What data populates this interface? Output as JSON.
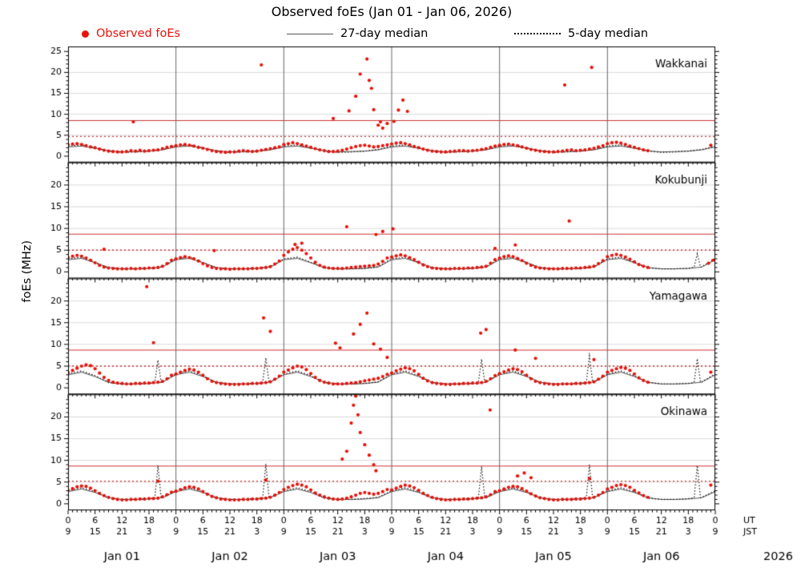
{
  "colors": {
    "observed": "#e8130b",
    "threshold": "#cc3333",
    "median27": "#555555",
    "median5": "#111111",
    "grid": "#d9d9d9",
    "dayline": "#666666"
  },
  "chart_data": {
    "type": "scatter",
    "title": "Observed foEs (Jan 01 - Jan 06, 2026)",
    "ylabel": "foEs (MHz)",
    "y_unit": "MHz",
    "x_unit": "hours from Jan 01 00:00 UT",
    "x_range": [
      0,
      144
    ],
    "legend": {
      "observed": "Observed foEs",
      "median27": "27-day median",
      "median5": "5-day median"
    },
    "axis": {
      "ut_ticks": [
        "0",
        "6",
        "12",
        "18"
      ],
      "jst_ticks": [
        "9",
        "15",
        "21",
        "3"
      ],
      "ut_final": "0",
      "jst_final": "9",
      "ut_label": "UT",
      "jst_label": "JST",
      "year": "2026",
      "day_labels": [
        "Jan 01",
        "Jan 02",
        "Jan 03",
        "Jan 04",
        "Jan 05",
        "Jan 06"
      ]
    },
    "panels": [
      {
        "station": "Wakkanai",
        "y_range": [
          0,
          25
        ],
        "yticks": [
          0,
          5,
          10,
          15,
          20,
          25
        ],
        "thresholds": {
          "solid": 8.5,
          "dotted": 4.7
        },
        "observed_hourly": [
          2.7,
          2.9,
          3.0,
          2.8,
          2.5,
          2.2,
          2.0,
          1.7,
          1.4,
          1.2,
          1.1,
          1.0,
          1.0,
          1.1,
          1.3,
          1.2,
          1.4,
          1.2,
          1.3,
          1.4,
          1.5,
          1.8,
          2.1,
          2.3,
          2.5,
          2.7,
          2.8,
          2.6,
          2.4,
          2.1,
          1.9,
          1.6,
          1.3,
          1.1,
          1.0,
          0.9,
          1.0,
          1.0,
          1.2,
          1.3,
          1.2,
          1.1,
          1.2,
          1.4,
          1.6,
          1.8,
          2.0,
          2.2,
          2.8,
          3.0,
          3.2,
          3.0,
          2.7,
          2.4,
          2.1,
          1.8,
          1.5,
          1.3,
          1.1,
          1.1,
          1.2,
          1.4,
          1.7,
          2.0,
          2.3,
          2.5,
          2.6,
          2.4,
          2.2,
          2.3,
          2.5,
          2.7,
          2.9,
          3.1,
          3.2,
          3.0,
          2.7,
          2.3,
          2.0,
          1.7,
          1.4,
          1.2,
          1.1,
          1.0,
          1.0,
          1.1,
          1.2,
          1.3,
          1.3,
          1.2,
          1.3,
          1.4,
          1.6,
          1.8,
          2.1,
          2.4,
          2.6,
          2.8,
          2.9,
          2.7,
          2.5,
          2.2,
          1.9,
          1.6,
          1.4,
          1.2,
          1.1,
          1.0,
          1.0,
          1.1,
          1.2,
          1.4,
          1.5,
          1.3,
          1.4,
          1.5,
          1.7,
          1.9,
          2.2,
          2.5,
          3.0,
          3.2,
          3.3,
          3.1,
          2.8,
          2.4,
          2.1,
          1.8,
          1.5,
          1.3
        ],
        "observed_extra": [
          [
            14.5,
            8.2
          ],
          [
            43,
            21.8
          ],
          [
            59,
            9.0
          ],
          [
            62.5,
            10.8
          ],
          [
            64,
            14.3
          ],
          [
            65,
            19.6
          ],
          [
            66.5,
            23.2
          ],
          [
            67,
            18.1
          ],
          [
            67.5,
            16.2
          ],
          [
            68,
            11.1
          ],
          [
            69,
            7.4
          ],
          [
            69.5,
            8.2
          ],
          [
            70,
            6.7
          ],
          [
            71,
            7.8
          ],
          [
            72.5,
            8.3
          ],
          [
            73.5,
            11.0
          ],
          [
            74.5,
            13.4
          ],
          [
            75.5,
            10.7
          ],
          [
            110.5,
            17.0
          ],
          [
            116.5,
            21.2
          ],
          [
            143,
            2.6
          ]
        ],
        "median27_day": [
          2.2,
          2.4,
          1.9,
          1.3,
          1.0,
          1.1,
          1.2,
          1.5
        ],
        "median5_day": [
          2.4,
          2.7,
          2.0,
          1.2,
          0.9,
          1.0,
          1.2,
          1.6
        ],
        "median5_spikes": []
      },
      {
        "station": "Kokubunji",
        "y_range": [
          0,
          24
        ],
        "yticks": [
          0,
          5,
          10,
          15,
          20
        ],
        "thresholds": {
          "solid": 8.7,
          "dotted": 5.0
        },
        "observed_hourly": [
          3.3,
          3.6,
          3.8,
          3.6,
          3.2,
          2.7,
          2.1,
          1.5,
          1.1,
          0.9,
          0.8,
          0.7,
          0.7,
          0.7,
          0.8,
          0.7,
          0.8,
          0.8,
          0.9,
          0.9,
          1.0,
          1.3,
          1.9,
          2.7,
          3.0,
          3.3,
          3.5,
          3.3,
          3.0,
          2.5,
          1.9,
          1.4,
          1.0,
          0.8,
          0.7,
          0.7,
          0.6,
          0.7,
          0.7,
          0.7,
          0.7,
          0.8,
          0.8,
          0.9,
          1.0,
          1.2,
          1.8,
          2.5,
          3.8,
          4.6,
          5.2,
          5.6,
          5.0,
          4.2,
          3.2,
          2.2,
          1.5,
          1.1,
          0.9,
          0.8,
          0.8,
          0.8,
          0.9,
          1.0,
          1.1,
          1.2,
          1.3,
          1.4,
          1.5,
          1.8,
          2.4,
          3.2,
          3.4,
          3.7,
          3.9,
          3.7,
          3.3,
          2.8,
          2.2,
          1.6,
          1.2,
          0.9,
          0.8,
          0.7,
          0.7,
          0.7,
          0.8,
          0.8,
          0.8,
          0.9,
          0.9,
          1.0,
          1.1,
          1.3,
          2.0,
          2.8,
          3.2,
          3.5,
          3.7,
          3.5,
          3.1,
          2.6,
          2.0,
          1.5,
          1.1,
          0.9,
          0.8,
          0.7,
          0.7,
          0.7,
          0.8,
          0.8,
          0.8,
          0.9,
          0.9,
          1.0,
          1.1,
          1.3,
          1.9,
          2.6,
          3.5,
          3.8,
          4.0,
          3.8,
          3.4,
          2.9,
          2.3,
          1.7,
          1.3,
          1.0
        ],
        "observed_extra": [
          [
            8,
            5.2
          ],
          [
            32.5,
            4.9
          ],
          [
            50.5,
            6.3
          ],
          [
            52,
            6.6
          ],
          [
            62,
            10.4
          ],
          [
            68.5,
            8.6
          ],
          [
            70,
            9.3
          ],
          [
            72.3,
            9.9
          ],
          [
            95,
            5.4
          ],
          [
            99.5,
            6.2
          ],
          [
            111.5,
            11.7
          ],
          [
            142.5,
            2.0
          ],
          [
            143.5,
            2.7
          ]
        ],
        "median27_day": [
          2.8,
          3.1,
          2.1,
          1.0,
          0.7,
          0.7,
          0.8,
          1.1
        ],
        "median5_day": [
          3.0,
          3.4,
          2.2,
          0.9,
          0.7,
          0.7,
          0.8,
          1.2
        ],
        "median5_spikes": [
          [
            140,
            4.2
          ]
        ]
      },
      {
        "station": "Yamagawa",
        "y_range": [
          0,
          24
        ],
        "yticks": [
          0,
          5,
          10,
          15,
          20
        ],
        "thresholds": {
          "solid": 8.7,
          "dotted": 5.0
        },
        "observed_hourly": [
          3.5,
          4.0,
          4.5,
          5.0,
          5.3,
          5.1,
          4.4,
          3.4,
          2.4,
          1.7,
          1.3,
          1.1,
          1.0,
          0.9,
          0.9,
          1.0,
          1.0,
          1.1,
          1.1,
          1.2,
          1.3,
          1.5,
          2.1,
          2.9,
          3.2,
          3.6,
          4.0,
          4.3,
          4.1,
          3.6,
          2.9,
          2.1,
          1.5,
          1.2,
          1.0,
          0.9,
          0.8,
          0.8,
          0.8,
          0.9,
          0.9,
          1.0,
          1.0,
          1.1,
          1.2,
          1.4,
          2.0,
          2.7,
          3.6,
          4.1,
          4.6,
          5.0,
          4.8,
          4.2,
          3.3,
          2.4,
          1.7,
          1.3,
          1.1,
          0.9,
          0.9,
          0.9,
          1.0,
          1.1,
          1.2,
          1.4,
          1.6,
          1.8,
          2.0,
          2.2,
          2.6,
          3.1,
          3.4,
          3.9,
          4.3,
          4.6,
          4.4,
          3.9,
          3.1,
          2.2,
          1.6,
          1.2,
          1.0,
          0.9,
          0.8,
          0.8,
          0.9,
          0.9,
          1.0,
          1.0,
          1.1,
          1.1,
          1.2,
          1.5,
          2.1,
          2.8,
          3.3,
          3.7,
          4.1,
          4.4,
          4.2,
          3.7,
          2.9,
          2.1,
          1.5,
          1.2,
          1.0,
          0.9,
          0.8,
          0.8,
          0.9,
          0.9,
          0.9,
          1.0,
          1.0,
          1.1,
          1.2,
          1.4,
          2.0,
          2.7,
          3.6,
          4.0,
          4.4,
          4.7,
          4.5,
          4.0,
          3.2,
          2.3,
          1.7,
          1.3
        ],
        "observed_extra": [
          [
            17.5,
            23.3
          ],
          [
            19,
            10.4
          ],
          [
            43.5,
            16.1
          ],
          [
            45,
            13.0
          ],
          [
            59.5,
            10.3
          ],
          [
            60.5,
            9.2
          ],
          [
            63.5,
            12.4
          ],
          [
            65,
            14.6
          ],
          [
            66.5,
            17.2
          ],
          [
            68,
            10.1
          ],
          [
            69.5,
            8.9
          ],
          [
            71,
            7.0
          ],
          [
            91.8,
            12.6
          ],
          [
            93,
            13.4
          ],
          [
            99.5,
            8.7
          ],
          [
            104,
            6.8
          ],
          [
            117,
            6.5
          ],
          [
            143,
            3.6
          ]
        ],
        "median27_day": [
          3.0,
          3.6,
          2.6,
          1.3,
          0.9,
          0.9,
          1.0,
          1.3
        ],
        "median5_day": [
          3.2,
          3.9,
          2.8,
          1.2,
          0.9,
          0.9,
          1.0,
          1.4
        ],
        "median5_spikes": [
          [
            20,
            6.4
          ],
          [
            44,
            6.9
          ],
          [
            92,
            6.6
          ],
          [
            116,
            7.4
          ],
          [
            140,
            6.7
          ]
        ]
      },
      {
        "station": "Okinawa",
        "y_range": [
          0,
          24
        ],
        "yticks": [
          0,
          5,
          10,
          15,
          20
        ],
        "thresholds": {
          "solid": 8.7,
          "dotted": 5.2
        },
        "observed_hourly": [
          3.1,
          3.5,
          3.9,
          4.1,
          4.0,
          3.6,
          3.0,
          2.4,
          1.9,
          1.5,
          1.2,
          1.0,
          0.9,
          0.9,
          1.0,
          1.0,
          1.1,
          1.1,
          1.2,
          1.2,
          1.3,
          1.6,
          2.1,
          2.7,
          2.9,
          3.3,
          3.7,
          3.9,
          3.8,
          3.4,
          2.8,
          2.2,
          1.7,
          1.4,
          1.1,
          1.0,
          0.9,
          0.9,
          0.9,
          1.0,
          1.0,
          1.1,
          1.1,
          1.2,
          1.3,
          1.5,
          2.0,
          2.6,
          3.3,
          3.8,
          4.2,
          4.5,
          4.3,
          3.9,
          3.2,
          2.5,
          2.0,
          1.6,
          1.3,
          1.1,
          1.0,
          1.1,
          1.3,
          1.6,
          2.0,
          2.4,
          2.6,
          2.4,
          2.2,
          2.4,
          2.8,
          3.3,
          3.2,
          3.6,
          4.0,
          4.3,
          4.1,
          3.7,
          3.1,
          2.4,
          1.9,
          1.5,
          1.2,
          1.0,
          0.9,
          0.9,
          1.0,
          1.0,
          1.1,
          1.1,
          1.2,
          1.3,
          1.4,
          1.6,
          2.1,
          2.8,
          3.0,
          3.4,
          3.8,
          4.0,
          3.9,
          3.5,
          2.9,
          2.3,
          1.8,
          1.4,
          1.2,
          1.0,
          0.9,
          0.9,
          1.0,
          1.0,
          1.0,
          1.1,
          1.1,
          1.2,
          1.3,
          1.5,
          2.0,
          2.6,
          3.4,
          3.8,
          4.2,
          4.4,
          4.2,
          3.8,
          3.1,
          2.5,
          1.9,
          1.5
        ],
        "observed_extra": [
          [
            20,
            5.2
          ],
          [
            44,
            5.5
          ],
          [
            61,
            10.3
          ],
          [
            62,
            12.1
          ],
          [
            63,
            18.6
          ],
          [
            63.5,
            22.7
          ],
          [
            64,
            24.8
          ],
          [
            64.5,
            20.5
          ],
          [
            65,
            16.4
          ],
          [
            66,
            13.6
          ],
          [
            67,
            11.2
          ],
          [
            68,
            9.0
          ],
          [
            68.5,
            7.6
          ],
          [
            93.9,
            21.6
          ],
          [
            100,
            6.4
          ],
          [
            101.5,
            7.1
          ],
          [
            103,
            6.0
          ],
          [
            116,
            5.8
          ],
          [
            143,
            4.3
          ]
        ],
        "median27_day": [
          2.8,
          3.4,
          2.6,
          1.4,
          1.0,
          1.0,
          1.1,
          1.4
        ],
        "median5_day": [
          3.0,
          3.7,
          2.8,
          1.3,
          1.0,
          1.0,
          1.2,
          1.5
        ],
        "median5_spikes": [
          [
            20,
            8.8
          ],
          [
            44,
            9.2
          ],
          [
            92,
            8.6
          ],
          [
            116,
            9.0
          ],
          [
            140,
            8.8
          ]
        ]
      }
    ]
  }
}
